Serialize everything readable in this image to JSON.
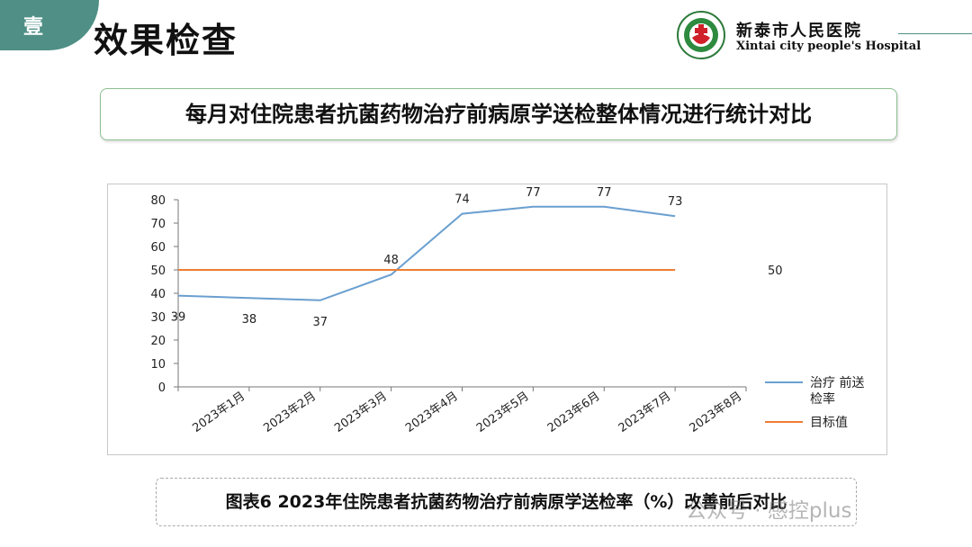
{
  "header": {
    "tab_label": "壹",
    "title": "效果检查",
    "hospital_name": "新泰市人民医院",
    "hospital_name_en": "Xintai city people's Hospital",
    "logo_text": "新泰市人民医院"
  },
  "subtitle": "每月对住院患者抗菌药物治疗前病原学送检整体情况进行统计对比",
  "caption": "图表6 2023年住院患者抗菌药物治疗前病原学送检率（%）改善前后对比",
  "watermark": "公众号 · 感控plus",
  "colors": {
    "accent": "#4f8f86",
    "series_rate": "#6a9fd0",
    "series_target": "#ed7d31"
  },
  "chart_data": {
    "type": "line",
    "title": "",
    "xlabel": "",
    "ylabel": "",
    "ylim": [
      0,
      80
    ],
    "yticks": [
      0,
      10,
      20,
      30,
      40,
      50,
      60,
      70,
      80
    ],
    "categories": [
      "2023年1月",
      "2023年2月",
      "2023年3月",
      "2023年4月",
      "2023年5月",
      "2023年6月",
      "2023年7月",
      "2023年8月"
    ],
    "series": [
      {
        "name": "治疗前送检率",
        "values": [
          39,
          38,
          37,
          48,
          74,
          77,
          77,
          73
        ],
        "color": "#6a9fd0",
        "data_labels": [
          "39",
          "38",
          "37",
          "48",
          "74",
          "77",
          "77",
          "73"
        ]
      },
      {
        "name": "目标值",
        "values": [
          50,
          50,
          50,
          50,
          50,
          50,
          50,
          50
        ],
        "color": "#ed7d31",
        "data_labels": [
          "50"
        ]
      }
    ],
    "legend": [
      "治疗 前送\n检率",
      "目标值"
    ],
    "legend_position": "right",
    "grid": false
  }
}
